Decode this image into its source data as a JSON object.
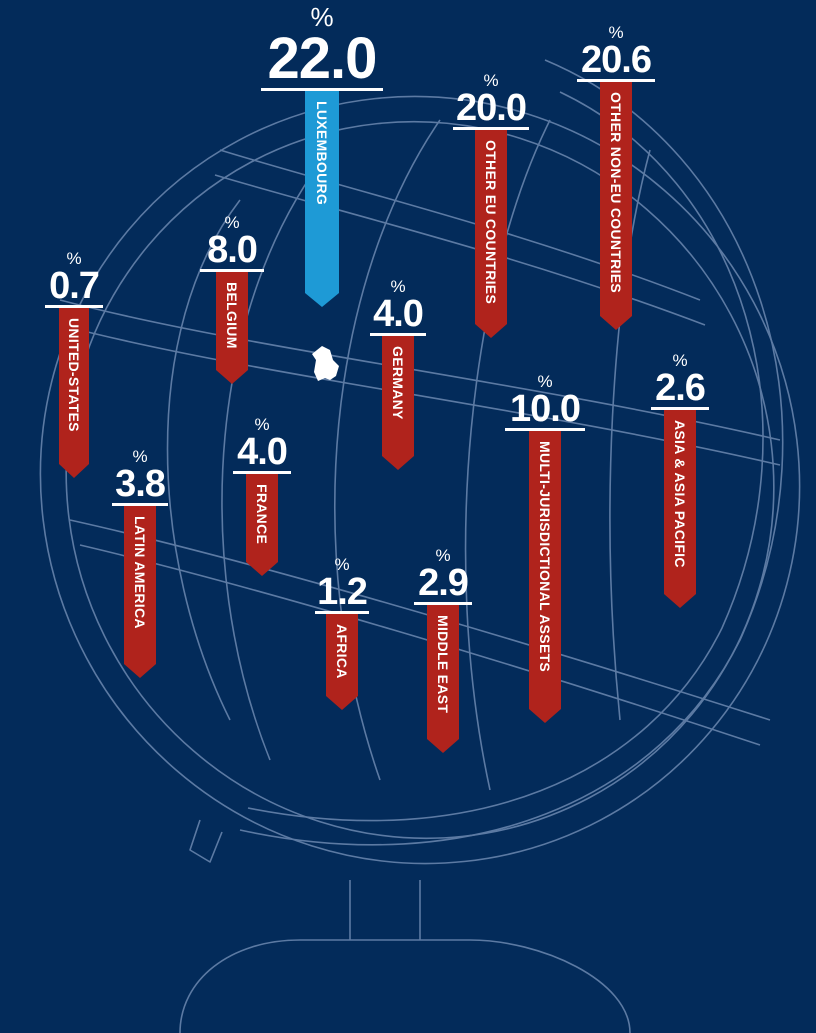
{
  "chart_data": {
    "type": "bar",
    "unit": "%",
    "categories": [
      "LUXEMBOURG",
      "OTHER EU COUNTRIES",
      "OTHER NON-EU COUNTRIES",
      "UNITED-STATES",
      "BELGIUM",
      "GERMANY",
      "MULTI-JURISDICTIONAL ASSETS",
      "ASIA & ASIA PACIFIC",
      "LATIN AMERICA",
      "FRANCE",
      "AFRICA",
      "MIDDLE EAST"
    ],
    "values": [
      22.0,
      20.0,
      20.6,
      0.7,
      8.0,
      4.0,
      10.0,
      2.6,
      3.8,
      4.0,
      1.2,
      2.9
    ],
    "value_labels": [
      "22.0",
      "20.0",
      "20.6",
      "0.7",
      "8.0",
      "4.0",
      "10.0",
      "2.6",
      "3.8",
      "4.0",
      "1.2",
      "2.9"
    ],
    "colors": [
      "#1e9ad6",
      "#b0231c",
      "#b0231c",
      "#b0231c",
      "#b0231c",
      "#b0231c",
      "#b0231c",
      "#b0231c",
      "#b0231c",
      "#b0231c",
      "#b0231c",
      "#b0231c"
    ]
  },
  "colors": {
    "background": "#032b5a",
    "globe_line": "#5c7aa3",
    "highlight": "#1e9ad6",
    "ribbon": "#b0231c"
  },
  "icons": {
    "luxembourg_map": "luxembourg-map-icon"
  }
}
